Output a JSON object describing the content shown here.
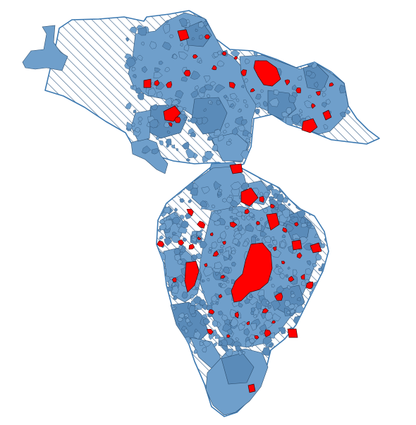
{
  "map": {
    "colors": {
      "background": "#ffffff",
      "region_outline": "#3b78b0",
      "hatch_line": "#4c6f93",
      "parcel_fill": "#6f9fcb",
      "parcel_fill_dark": "#5a8bb9",
      "parcel_stroke": "#2b4d6e",
      "hotspot_fill": "#ff0000",
      "hotspot_stroke": "#3a0000"
    },
    "layers": [
      {
        "id": "regions",
        "style": "diagonal-hatch"
      },
      {
        "id": "parcels",
        "style": "solid-blue"
      },
      {
        "id": "hotspots",
        "style": "solid-red"
      }
    ]
  }
}
